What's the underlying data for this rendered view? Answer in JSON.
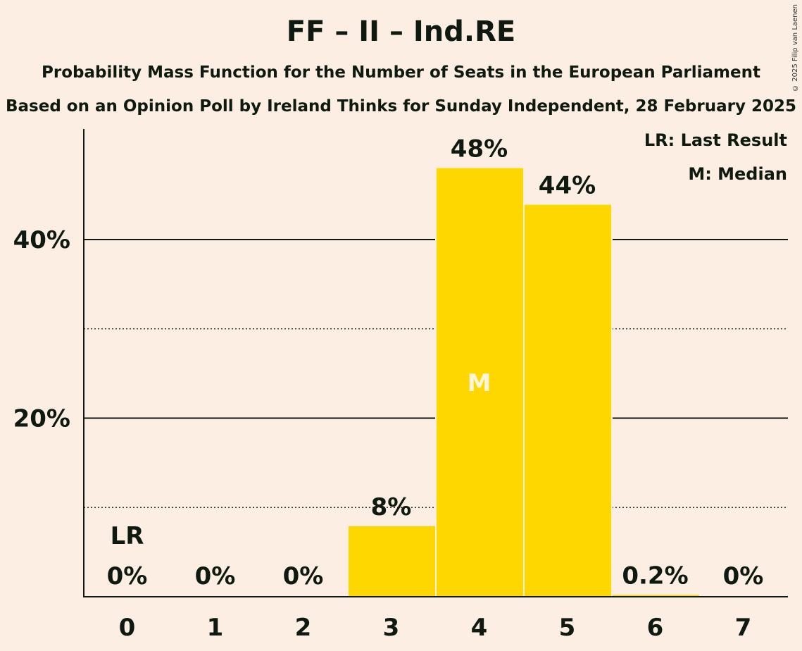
{
  "title": "FF – II – Ind.RE",
  "subtitle1": "Probability Mass Function for the Number of Seats in the European Parliament",
  "subtitle2": "Based on an Opinion Poll by Ireland Thinks for Sunday Independent, 28 February 2025",
  "copyright": "© 2025 Filip van Laenen",
  "legend": {
    "last_result": "LR: Last Result",
    "median": "M: Median"
  },
  "colors": {
    "background": "#FDEEE4",
    "bar": "#FFD700",
    "text": "#0E1A10",
    "median_text": "#FFF5DC"
  },
  "chart_data": {
    "type": "bar",
    "categories": [
      "0",
      "1",
      "2",
      "3",
      "4",
      "5",
      "6",
      "7"
    ],
    "values": [
      0,
      0,
      0,
      7.9,
      48,
      43.9,
      0.2,
      0
    ],
    "value_labels": [
      "0%",
      "0%",
      "0%",
      "8%",
      "48%",
      "44%",
      "0.2%",
      "0%"
    ],
    "last_result_index": 0,
    "last_result_label": "LR",
    "median_index": 4,
    "median_label": "M",
    "ylim": [
      0,
      52
    ],
    "yticks_major": [
      20,
      40
    ],
    "ytick_labels": [
      "20%",
      "40%"
    ],
    "yticks_minor": [
      10,
      30
    ],
    "xlabel": "",
    "ylabel": ""
  }
}
